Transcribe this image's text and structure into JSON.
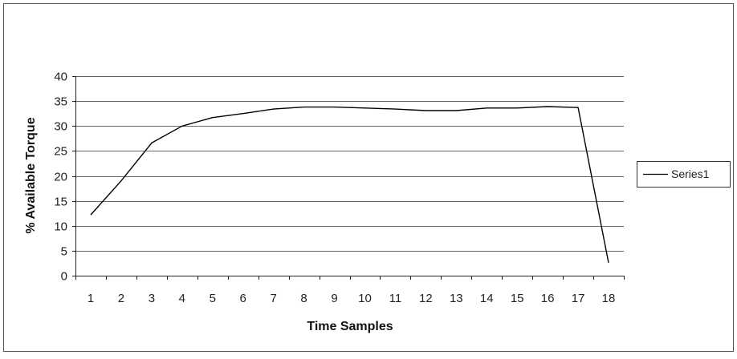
{
  "chart_data": {
    "type": "line",
    "title": "",
    "xlabel": "Time Samples",
    "ylabel": "% Available Torque",
    "x": [
      1,
      2,
      3,
      4,
      5,
      6,
      7,
      8,
      9,
      10,
      11,
      12,
      13,
      14,
      15,
      16,
      17,
      18
    ],
    "ylim": [
      0,
      40
    ],
    "yticks": [
      0,
      5,
      10,
      15,
      20,
      25,
      30,
      35,
      40
    ],
    "grid": true,
    "legend_position": "right",
    "series": [
      {
        "name": "Series1",
        "color": "#000000",
        "values": [
          12.2,
          19,
          26.6,
          30,
          31.7,
          32.5,
          33.4,
          33.8,
          33.8,
          33.6,
          33.4,
          33.1,
          33.1,
          33.6,
          33.6,
          33.9,
          33.7,
          2.6
        ]
      }
    ]
  }
}
